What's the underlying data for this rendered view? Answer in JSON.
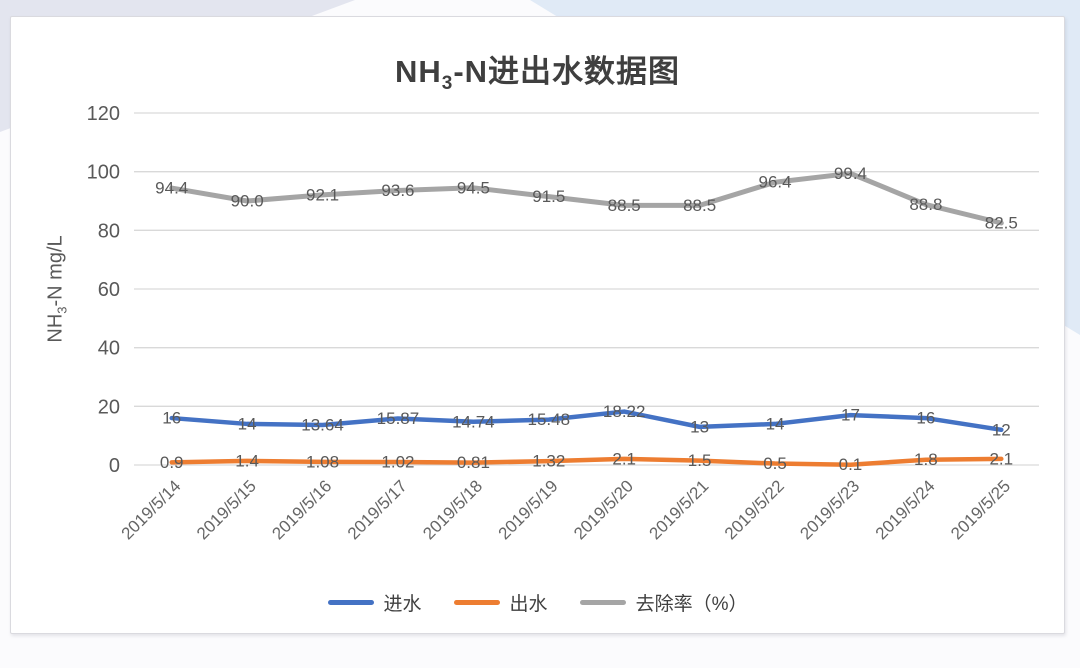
{
  "page": {
    "background_base": "#FBFBFD",
    "background_left_wedge": "#E3E5EF",
    "background_right_wedge": "#E0EAF6",
    "card_border": "#DADADF"
  },
  "chart_data": {
    "type": "line",
    "title": {
      "prefix": "NH",
      "sub": "3",
      "suffix": "-N进出水数据图"
    },
    "ylabel": {
      "prefix": "NH",
      "sub": "3",
      "suffix": "-N mg/L"
    },
    "xlabel": "",
    "ylim": [
      0,
      120
    ],
    "yticks": [
      0,
      20,
      40,
      60,
      80,
      100,
      120
    ],
    "grid": true,
    "legend_position": "bottom",
    "gridline_color": "#D9D9D9",
    "axis_text_color": "#595959",
    "data_label_color": "#595959",
    "categories": [
      "2019/5/14",
      "2019/5/15",
      "2019/5/16",
      "2019/5/17",
      "2019/5/18",
      "2019/5/19",
      "2019/5/20",
      "2019/5/21",
      "2019/5/22",
      "2019/5/23",
      "2019/5/24",
      "2019/5/25"
    ],
    "series": [
      {
        "name": "进水",
        "color": "#4472C4",
        "values": [
          16,
          14,
          13.64,
          15.87,
          14.74,
          15.48,
          18.22,
          13,
          14,
          17,
          16,
          12
        ],
        "labels": [
          "16",
          "14",
          "13.64",
          "15.87",
          "14.74",
          "15.48",
          "18.22",
          "13",
          "14",
          "17",
          "16",
          "12"
        ]
      },
      {
        "name": "出水",
        "color": "#ED7D31",
        "values": [
          0.9,
          1.4,
          1.08,
          1.02,
          0.81,
          1.32,
          2.1,
          1.5,
          0.5,
          0.1,
          1.8,
          2.1
        ],
        "labels": [
          "0.9",
          "1.4",
          "1.08",
          "1.02",
          "0.81",
          "1.32",
          "2.1",
          "1.5",
          "0.5",
          "0.1",
          "1.8",
          "2.1"
        ]
      },
      {
        "name": "去除率（%）",
        "color": "#A5A5A5",
        "values": [
          94.4,
          90.0,
          92.1,
          93.6,
          94.5,
          91.5,
          88.5,
          88.5,
          96.4,
          99.4,
          88.8,
          82.5
        ],
        "labels": [
          "94.4",
          "90.0",
          "92.1",
          "93.6",
          "94.5",
          "91.5",
          "88.5",
          "88.5",
          "96.4",
          "99.4",
          "88.8",
          "82.5"
        ]
      }
    ]
  }
}
